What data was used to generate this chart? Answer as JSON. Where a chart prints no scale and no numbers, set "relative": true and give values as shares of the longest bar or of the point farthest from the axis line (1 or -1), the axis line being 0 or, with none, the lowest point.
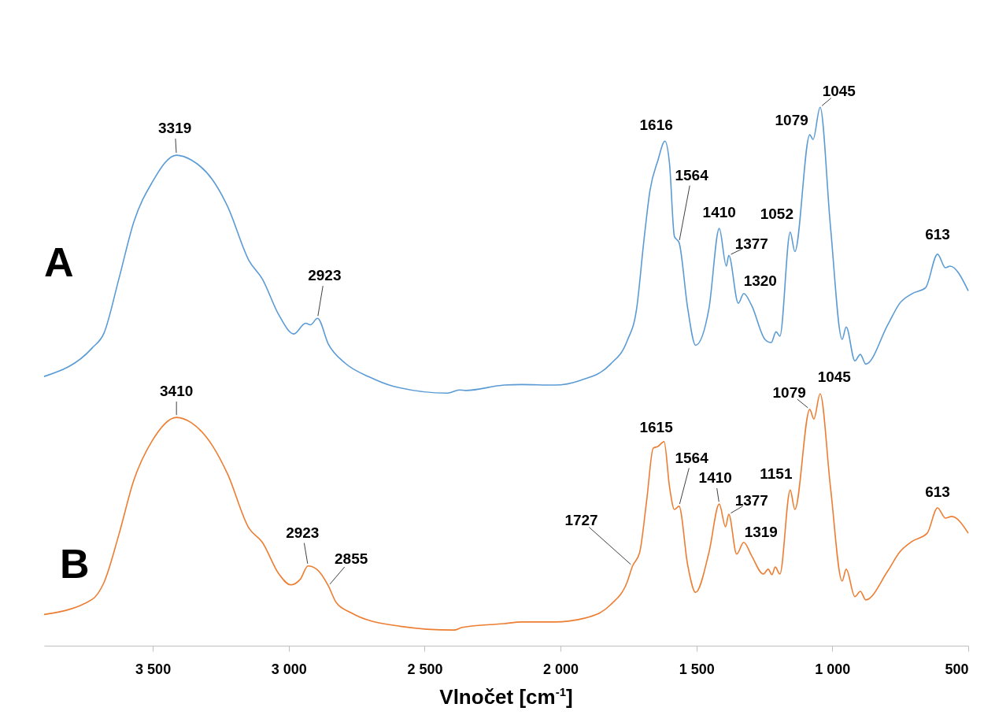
{
  "chart_data": {
    "type": "line",
    "xlabel": "Vlnočet [cm$^{-1}$]",
    "relative": true,
    "xlim": [
      3900,
      500
    ],
    "xticks": [
      {
        "value": 3500,
        "label": "3 500"
      },
      {
        "value": 3000,
        "label": "3 000"
      },
      {
        "value": 2500,
        "label": "2 500"
      },
      {
        "value": 2000,
        "label": "2 000"
      },
      {
        "value": 1500,
        "label": "1 500"
      },
      {
        "value": 1000,
        "label": "1 000"
      },
      500
    ],
    "series": [
      {
        "name": "A",
        "color": "#5b9bd5",
        "x": [
          3900,
          3723,
          3680,
          3625,
          3570,
          3503,
          3413,
          3358,
          3280,
          3225,
          3146,
          3097,
          3036,
          2981,
          2938,
          2920,
          2894,
          2854,
          2793,
          2703,
          2616,
          2416,
          2372,
          2349,
          2207,
          2144,
          2022,
          1926,
          1816,
          1755,
          1720,
          1694,
          1671,
          1642,
          1616,
          1599,
          1581,
          1564,
          1532,
          1503,
          1454,
          1416,
          1390,
          1381,
          1346,
          1326,
          1297,
          1248,
          1225,
          1207,
          1193,
          1155,
          1138,
          1083,
          1071,
          1045,
          1007,
          964,
          949,
          917,
          897,
          877,
          796,
          752,
          706,
          657,
          613,
          584,
          567,
          500
        ],
        "values": [
          0.5,
          0.553,
          0.58,
          0.681,
          0.787,
          0.86,
          0.911,
          0.902,
          0.865,
          0.816,
          0.715,
          0.681,
          0.614,
          0.579,
          0.599,
          0.596,
          0.608,
          0.56,
          0.525,
          0.499,
          0.482,
          0.469,
          0.475,
          0.474,
          0.484,
          0.485,
          0.484,
          0.493,
          0.523,
          0.566,
          0.626,
          0.749,
          0.845,
          0.901,
          0.937,
          0.895,
          0.76,
          0.749,
          0.626,
          0.558,
          0.626,
          0.775,
          0.705,
          0.725,
          0.636,
          0.654,
          0.632,
          0.569,
          0.563,
          0.583,
          0.575,
          0.768,
          0.732,
          0.949,
          0.94,
          1,
          0.779,
          0.569,
          0.592,
          0.529,
          0.541,
          0.523,
          0.596,
          0.636,
          0.654,
          0.665,
          0.727,
          0.702,
          0.705,
          0.659
        ]
      },
      {
        "name": "B",
        "color": "#ed7d31",
        "x": [
          3900,
          3723,
          3680,
          3625,
          3570,
          3503,
          3413,
          3358,
          3280,
          3225,
          3146,
          3097,
          3036,
          2993,
          2958,
          2929,
          2897,
          2854,
          2825,
          2770,
          2616,
          2393,
          2361,
          2207,
          2144,
          2022,
          1912,
          1816,
          1755,
          1735,
          1709,
          1683,
          1659,
          1642,
          1619,
          1599,
          1581,
          1564,
          1532,
          1503,
          1454,
          1416,
          1393,
          1381,
          1352,
          1326,
          1297,
          1254,
          1236,
          1222,
          1210,
          1193,
          1155,
          1138,
          1083,
          1068,
          1045,
          1007,
          964,
          949,
          917,
          897,
          877,
          796,
          752,
          706,
          651,
          613,
          584,
          561,
          500
        ],
        "values": [
          0.058,
          0.086,
          0.117,
          0.206,
          0.307,
          0.38,
          0.424,
          0.414,
          0.371,
          0.319,
          0.218,
          0.192,
          0.133,
          0.113,
          0.123,
          0.148,
          0.142,
          0.111,
          0.08,
          0.061,
          0.038,
          0.029,
          0.034,
          0.041,
          0.044,
          0.044,
          0.051,
          0.076,
          0.118,
          0.148,
          0.173,
          0.27,
          0.367,
          0.37,
          0.379,
          0.295,
          0.253,
          0.259,
          0.149,
          0.099,
          0.173,
          0.263,
          0.221,
          0.244,
          0.17,
          0.192,
          0.167,
          0.133,
          0.142,
          0.132,
          0.146,
          0.133,
          0.289,
          0.253,
          0.439,
          0.421,
          0.468,
          0.295,
          0.12,
          0.142,
          0.091,
          0.101,
          0.085,
          0.139,
          0.174,
          0.194,
          0.209,
          0.256,
          0.237,
          0.24,
          0.209
        ]
      }
    ],
    "annotations": [
      {
        "text": "3319",
        "x": 3413,
        "y": 0.911
      },
      {
        "text": "2923",
        "x": 2894,
        "y": 0.608
      },
      {
        "text": "1616",
        "x": 1616,
        "y": 0.937
      },
      {
        "text": "1564",
        "x": 1564,
        "y": 0.749
      },
      {
        "text": "1410",
        "x": 1416,
        "y": 0.775
      },
      {
        "text": "1377",
        "x": 1381,
        "y": 0.725
      },
      {
        "text": "1320",
        "x": 1326,
        "y": 0.654
      },
      {
        "text": "1052",
        "x": 1155,
        "y": 0.768
      },
      {
        "text": "1079",
        "x": 1083,
        "y": 0.949
      },
      {
        "text": "1045",
        "x": 1045,
        "y": 1
      },
      {
        "text": "613",
        "x": 613,
        "y": 0.727
      },
      {
        "text": "3410",
        "x": 3413,
        "y": 0.424
      },
      {
        "text": "2923",
        "x": 2929,
        "y": 0.148
      },
      {
        "text": "2855",
        "x": 2854,
        "y": 0.111
      },
      {
        "text": "1727",
        "x": 1735,
        "y": 0.148
      },
      {
        "text": "1615",
        "x": 1619,
        "y": 0.379
      },
      {
        "text": "1564",
        "x": 1564,
        "y": 0.259
      },
      {
        "text": "1410",
        "x": 1416,
        "y": 0.263
      },
      {
        "text": "1377",
        "x": 1381,
        "y": 0.244
      },
      {
        "text": "1319",
        "x": 1326,
        "y": 0.192
      },
      {
        "text": "1151",
        "x": 1155,
        "y": 0.289
      },
      {
        "text": "1079",
        "x": 1083,
        "y": 0.439
      },
      {
        "text": "1045",
        "x": 1045,
        "y": 0.468
      },
      {
        "text": "613",
        "x": 613,
        "y": 0.256
      }
    ]
  }
}
